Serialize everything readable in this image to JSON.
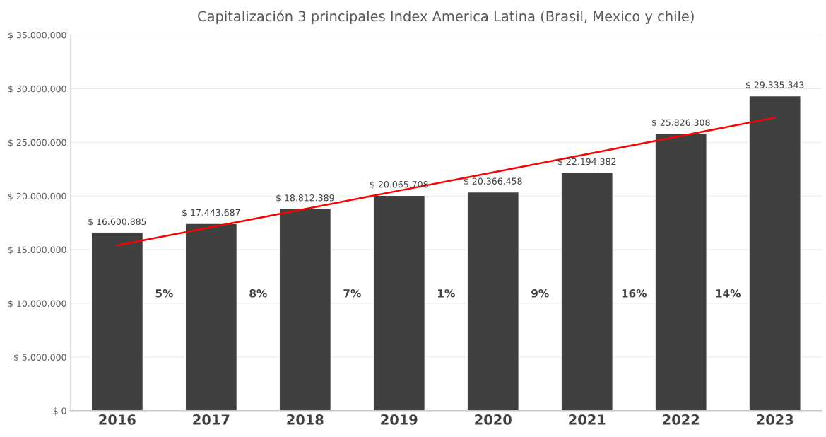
{
  "chart_data": {
    "type": "bar",
    "title": "Capitalización 3 principales Index America Latina (Brasil, Mexico y chile)",
    "categories": [
      "2016",
      "2017",
      "2018",
      "2019",
      "2020",
      "2021",
      "2022",
      "2023"
    ],
    "series": [
      {
        "color": "#404040",
        "values": [
          16600885,
          17443687,
          18812389,
          20065708,
          20366458,
          22194382,
          25826308,
          29335343
        ],
        "value_labels": [
          "$ 16.600.885",
          "$ 17.443.687",
          "$ 18.812.389",
          "$ 20.065.708",
          "$ 20.366.458",
          "$ 22.194.382",
          "$ 25.826.308",
          "$ 29.335.343"
        ]
      },
      {
        "type": "line",
        "color": "#ff0000",
        "values": [
          15400000,
          17100000,
          18800000,
          20500000,
          22200000,
          23900000,
          25600000,
          27300000
        ]
      }
    ],
    "ylim": [
      0,
      35000000
    ],
    "yticks": [
      {
        "value": 0,
        "label": "$ 0"
      },
      {
        "value": 5000000,
        "label": "$ 5.000.000"
      },
      {
        "value": 10000000,
        "label": "$ 10.000.000"
      },
      {
        "value": 15000000,
        "label": "$ 15.000.000"
      },
      {
        "value": 20000000,
        "label": "$ 20.000.000"
      },
      {
        "value": 25000000,
        "label": "$ 25.000.000"
      },
      {
        "value": 30000000,
        "label": "$ 30.000.000"
      },
      {
        "value": 35000000,
        "label": "$ 35.000.000"
      }
    ],
    "grid": "y",
    "annotations": [
      "5%",
      "8%",
      "7%",
      "1%",
      "9%",
      "16%",
      "14%"
    ]
  }
}
